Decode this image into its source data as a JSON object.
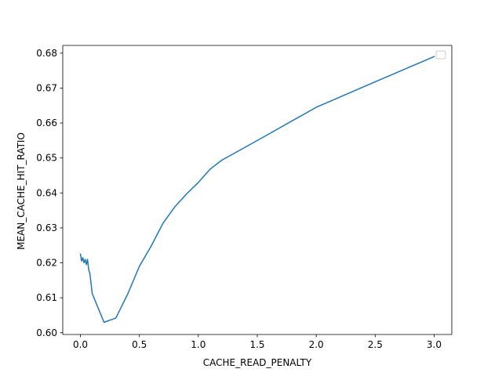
{
  "chart_data": {
    "type": "line",
    "title": "",
    "xlabel": "CACHE_READ_PENALTY",
    "ylabel": "MEAN_CACHE_HIT_RATIO",
    "xlim": [
      -0.15,
      3.15
    ],
    "ylim": [
      0.5995,
      0.6822
    ],
    "xticks": [
      0.0,
      0.5,
      1.0,
      1.5,
      2.0,
      2.5,
      3.0
    ],
    "xtick_labels": [
      "0.0",
      "0.5",
      "1.0",
      "1.5",
      "2.0",
      "2.5",
      "3.0"
    ],
    "yticks": [
      0.6,
      0.61,
      0.62,
      0.63,
      0.64,
      0.65,
      0.66,
      0.67,
      0.68
    ],
    "ytick_labels": [
      "0.60",
      "0.61",
      "0.62",
      "0.63",
      "0.64",
      "0.65",
      "0.66",
      "0.67",
      "0.68"
    ],
    "grid": false,
    "legend": {
      "placement": "top-right",
      "entries": []
    },
    "series": [
      {
        "color": "#1f77b4",
        "x": [
          0.0,
          0.01,
          0.02,
          0.03,
          0.04,
          0.05,
          0.06,
          0.07,
          0.08,
          0.1,
          0.2,
          0.3,
          0.4,
          0.5,
          0.6,
          0.7,
          0.8,
          0.9,
          1.0,
          1.1,
          1.2,
          1.5,
          2.0,
          2.5,
          3.0
        ],
        "y": [
          0.6225,
          0.6205,
          0.6215,
          0.62,
          0.621,
          0.6195,
          0.621,
          0.618,
          0.617,
          0.6112,
          0.603,
          0.6042,
          0.611,
          0.619,
          0.6248,
          0.6313,
          0.636,
          0.6397,
          0.643,
          0.6468,
          0.6494,
          0.655,
          0.6645,
          0.6718,
          0.679
        ]
      }
    ]
  }
}
